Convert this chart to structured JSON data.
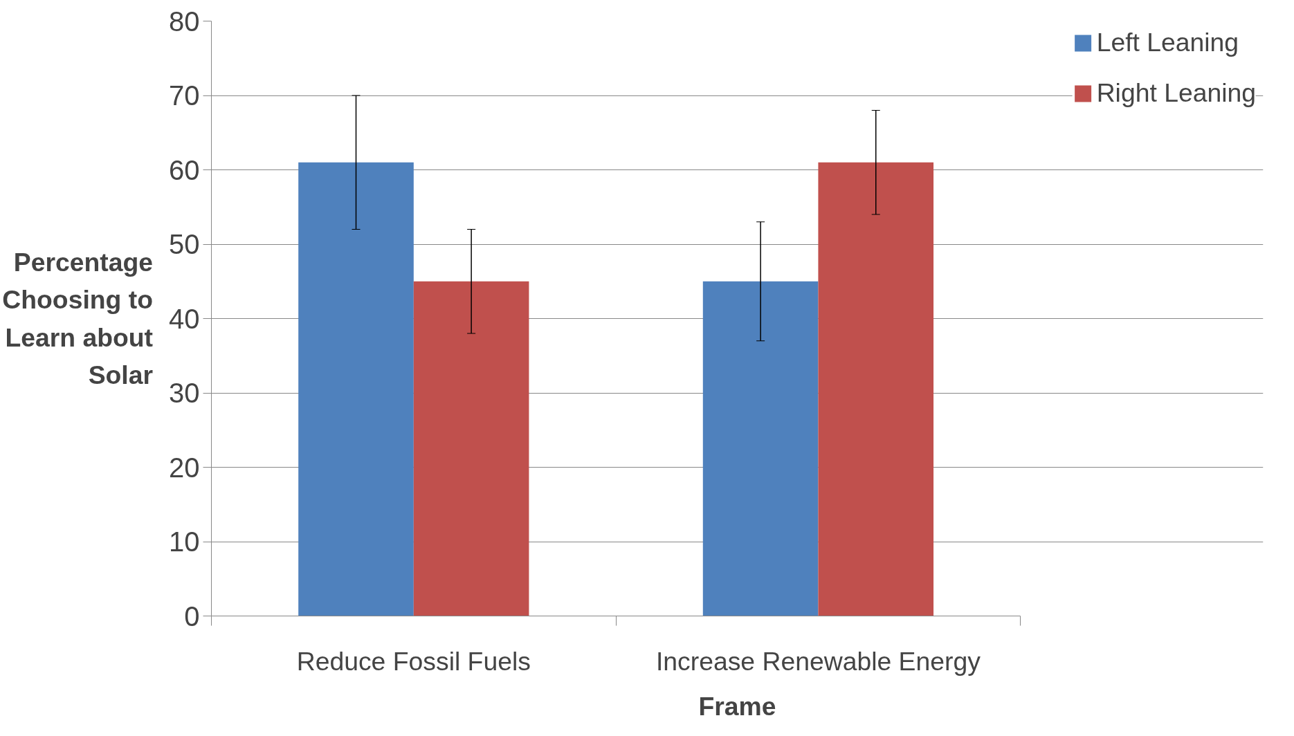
{
  "chart_data": {
    "type": "bar",
    "xlabel": "Frame",
    "ylabel": "Percentage Choosing to Learn about Solar",
    "categories": [
      "Reduce Fossil Fuels",
      "Increase Renewable Energy"
    ],
    "series": [
      {
        "name": "Left Leaning",
        "color": "#4f81bd",
        "values": [
          61,
          45
        ],
        "errors": [
          [
            52,
            70
          ],
          [
            37,
            53
          ]
        ]
      },
      {
        "name": "Right Leaning",
        "color": "#c0504d",
        "values": [
          45,
          61
        ],
        "errors": [
          [
            38,
            52
          ],
          [
            54,
            68
          ]
        ]
      }
    ],
    "ylim": [
      0,
      80
    ],
    "yticks": [
      0,
      10,
      20,
      30,
      40,
      50,
      60,
      70,
      80
    ],
    "grid": "y",
    "legend": "top right"
  }
}
